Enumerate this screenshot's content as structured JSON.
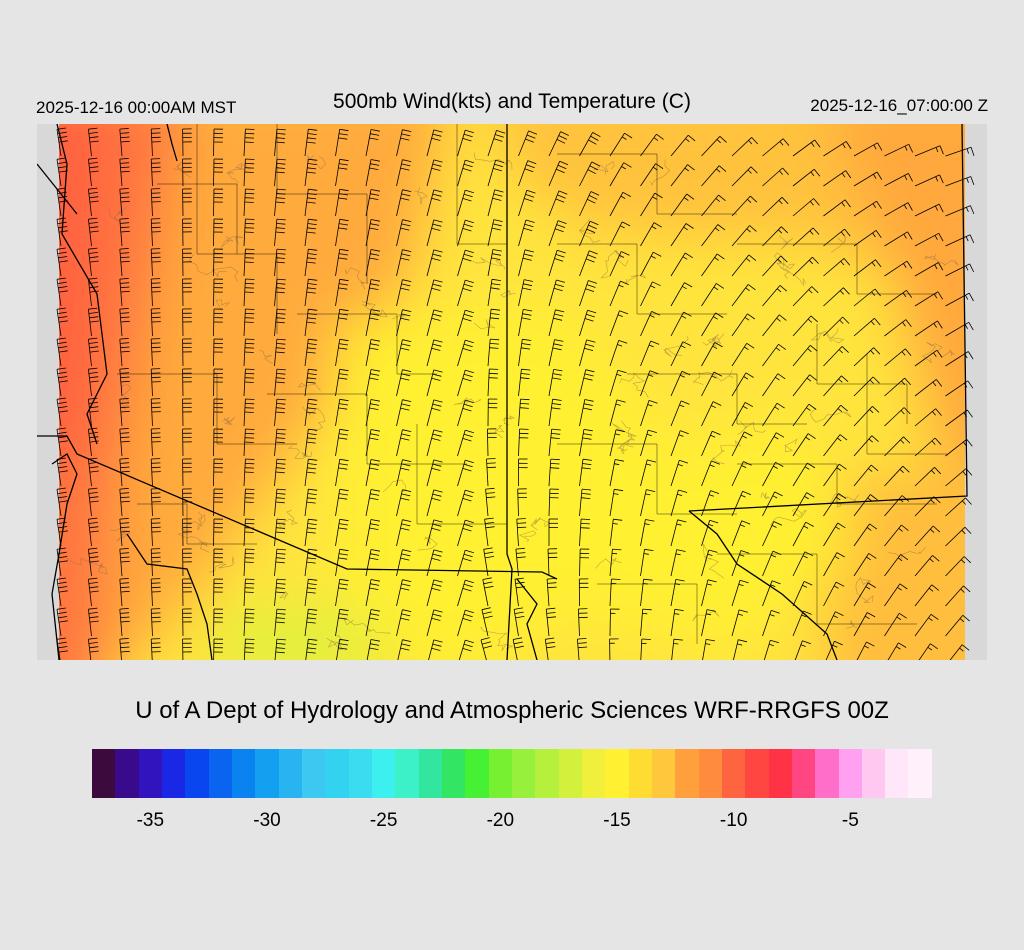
{
  "header": {
    "valid_local": "2025-12-16 00:00AM MST",
    "title": "500mb Wind(kts) and Temperature (C)",
    "valid_utc": "2025-12-16_07:00:00 Z"
  },
  "credit": "U of A Dept of Hydrology and Atmospheric Sciences WRF-RRGFS 00Z",
  "colorbar": {
    "colors": [
      "#3c0a3c",
      "#3a0a8c",
      "#3214be",
      "#1a28e6",
      "#0a46f0",
      "#0a64f0",
      "#0a82f0",
      "#14a0f0",
      "#28b4f0",
      "#3cc8f0",
      "#32d2f0",
      "#3cdcf0",
      "#3cf0f0",
      "#3cf0c8",
      "#32e6a0",
      "#32e664",
      "#46f032",
      "#78f032",
      "#96f03c",
      "#b4f03c",
      "#d2f03c",
      "#f0f03c",
      "#fff032",
      "#ffdc32",
      "#ffc83c",
      "#ffa03c",
      "#ff8c3c",
      "#ff6440",
      "#ff4640",
      "#ff3246",
      "#ff4682",
      "#ff6ec8",
      "#ffa0f0",
      "#ffc8f0",
      "#ffe6f8",
      "#fff0fc"
    ],
    "ticks": [
      {
        "label": "-35",
        "value": -35
      },
      {
        "label": "-30",
        "value": -30
      },
      {
        "label": "-25",
        "value": -25
      },
      {
        "label": "-20",
        "value": -20
      },
      {
        "label": "-15",
        "value": -15
      },
      {
        "label": "-10",
        "value": -10
      },
      {
        "label": "-5",
        "value": -5
      }
    ],
    "range": [
      -37.5,
      -1.5
    ]
  },
  "map": {
    "no_data_color": "#d8d8d8",
    "temperature_colors": {
      "west_coast": "#ff7a40",
      "west_band": "#ff9a3c",
      "north": "#ffc23c",
      "interior": "#ffe43c",
      "core": "#fff032",
      "southwest_min": "#e6f03c"
    },
    "wind_barbs": "black",
    "boundaries": "black"
  }
}
